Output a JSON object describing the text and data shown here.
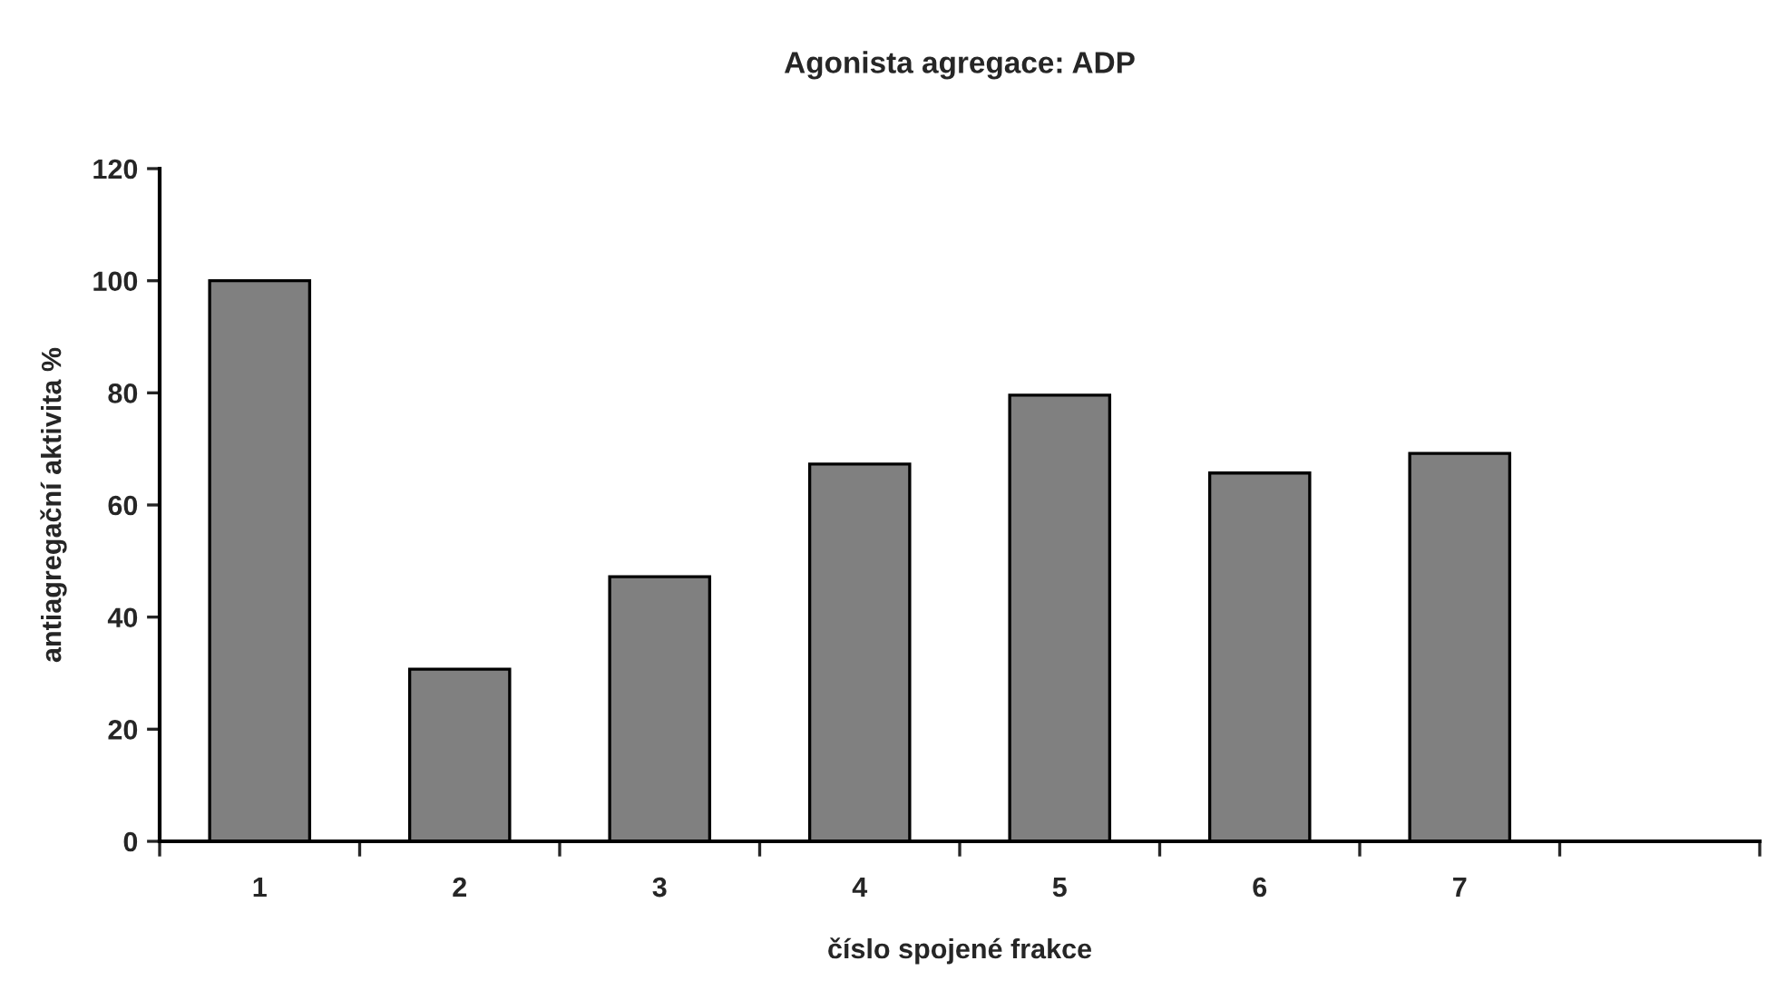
{
  "chart_data": {
    "type": "bar",
    "title": "Agonista agregace: ADP",
    "xlabel": "číslo spojené frakce",
    "ylabel": "antiagregační aktivita %",
    "categories": [
      "1",
      "2",
      "3",
      "4",
      "5",
      "6",
      "7",
      null
    ],
    "values": [
      100,
      30.7,
      47.2,
      67.3,
      79.6,
      65.7,
      69.2,
      null
    ],
    "color": "#808080",
    "ylim": [
      0,
      120
    ],
    "yticks": [
      0,
      20,
      40,
      60,
      80,
      100,
      120
    ],
    "grid": false,
    "legend": false
  }
}
